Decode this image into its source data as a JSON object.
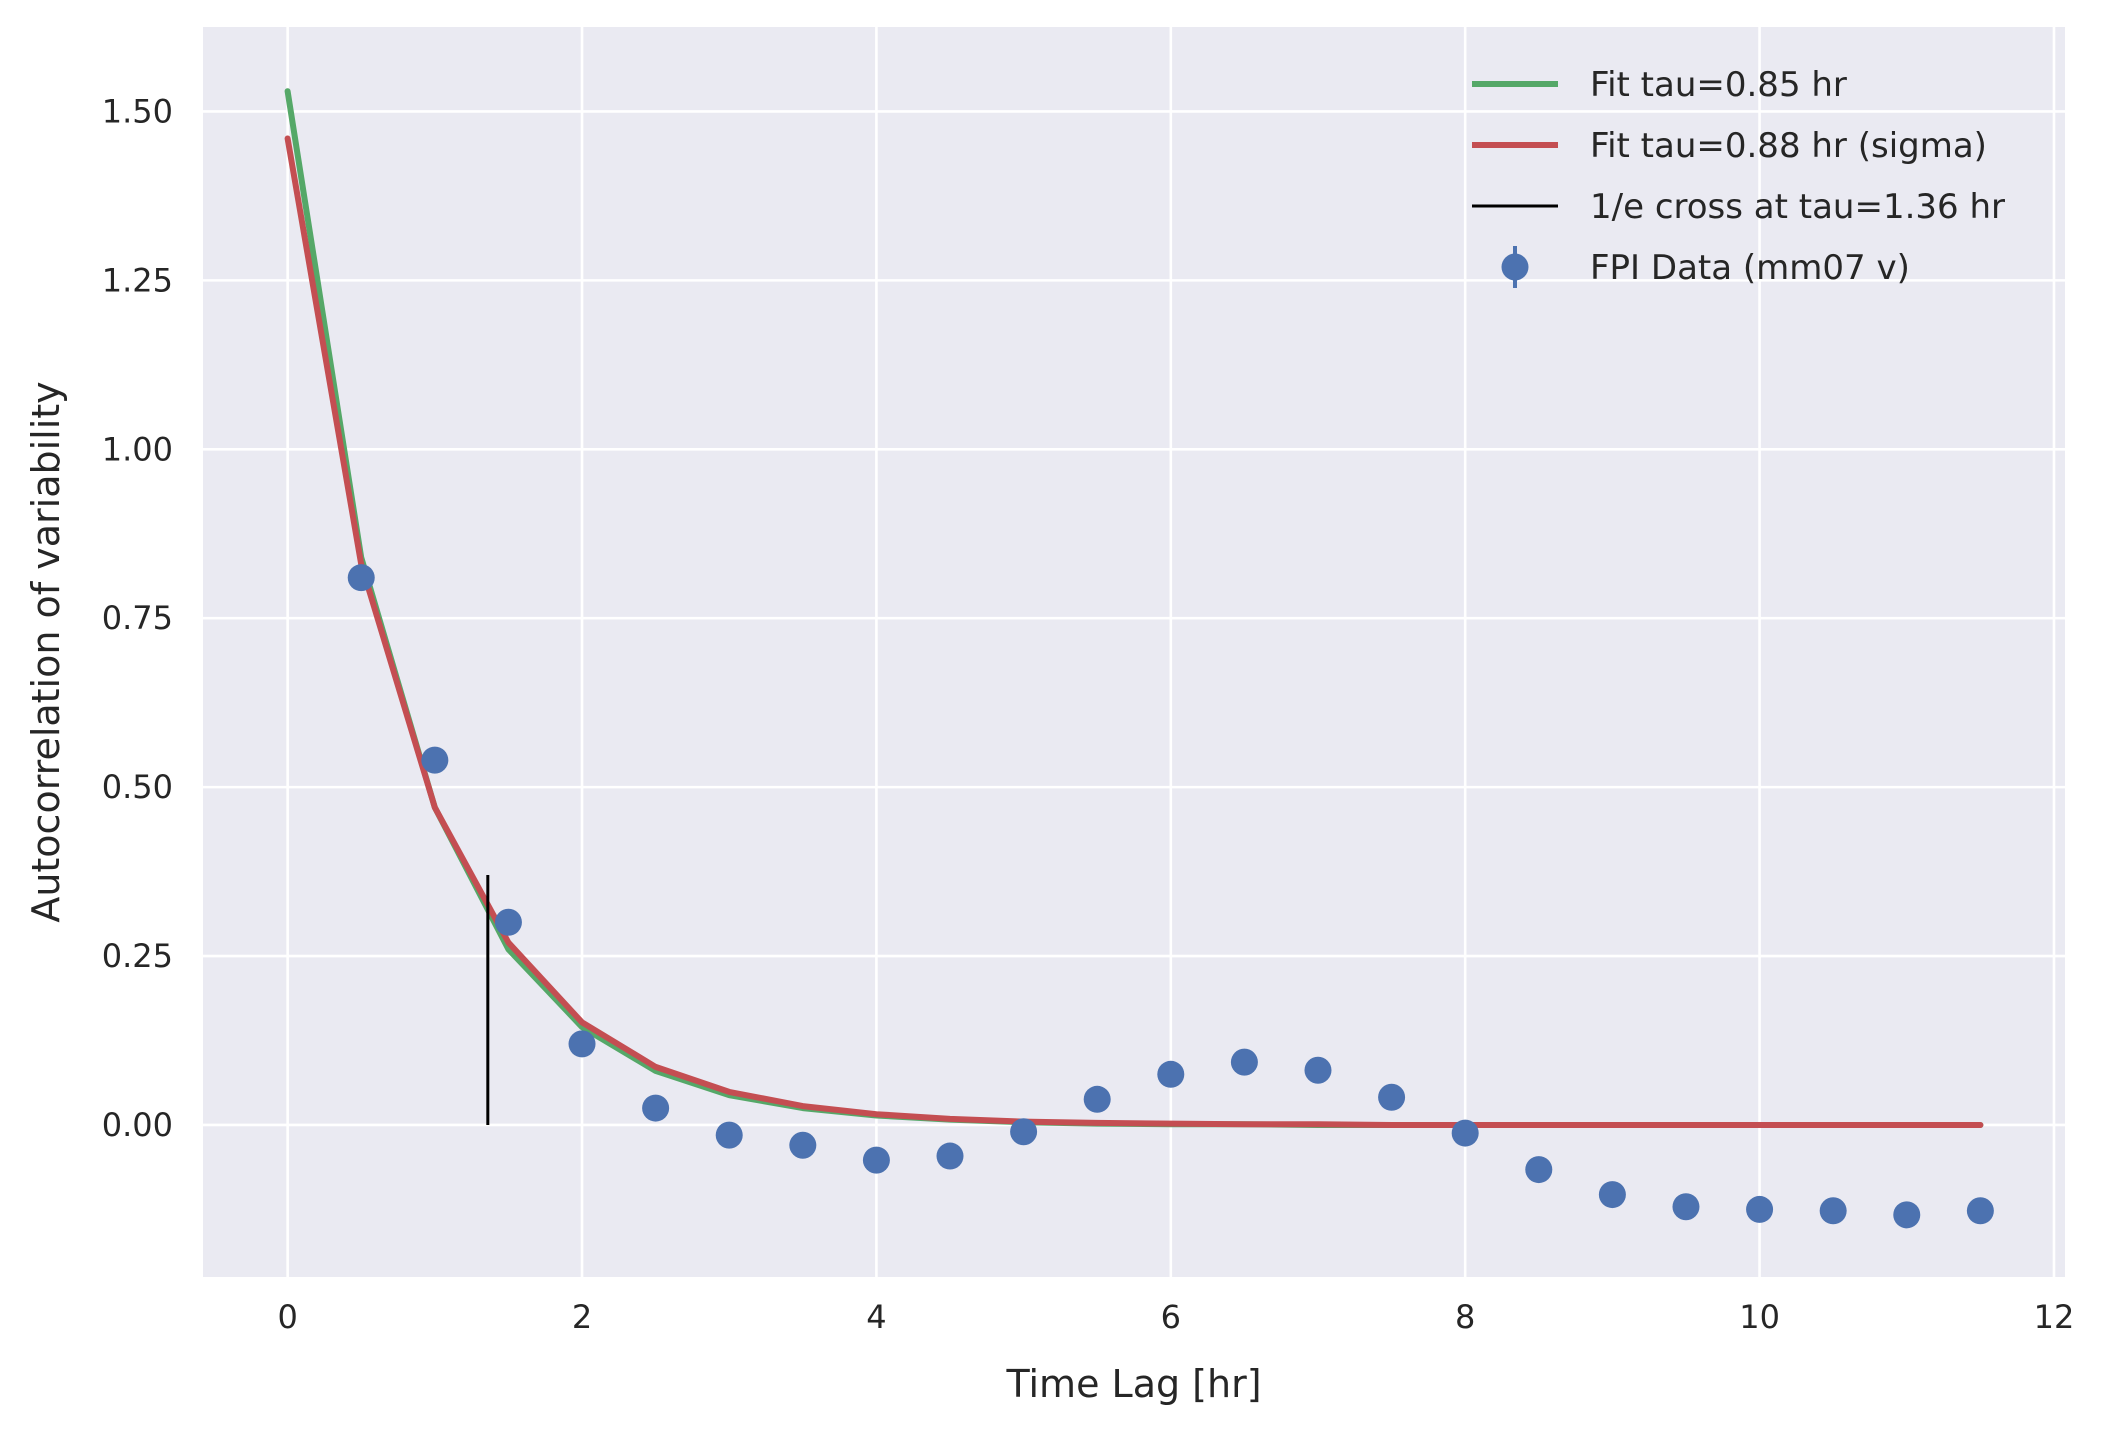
{
  "chart_data": {
    "type": "line",
    "title": "",
    "xlabel": "Time Lag [hr]",
    "ylabel": "Autocorrelation of variability",
    "xlim": [
      -0.575,
      12.075
    ],
    "ylim": [
      -0.225,
      1.625
    ],
    "xticks": [
      0,
      2,
      4,
      6,
      8,
      10,
      12
    ],
    "xtick_labels": [
      "0",
      "2",
      "4",
      "6",
      "8",
      "10",
      "12"
    ],
    "yticks": [
      0.0,
      0.25,
      0.5,
      0.75,
      1.0,
      1.25,
      1.5
    ],
    "ytick_labels": [
      "0.00",
      "0.25",
      "0.50",
      "0.75",
      "1.00",
      "1.25",
      "1.50"
    ],
    "grid": true,
    "legend_position": "top-right",
    "background": "#eaeaf2",
    "series": [
      {
        "name": "Fit tau=0.85 hr",
        "kind": "line",
        "color": "#55a868",
        "x": [
          0,
          0.5,
          1,
          1.5,
          2,
          2.5,
          3,
          3.5,
          4,
          4.5,
          5,
          5.5,
          6,
          6.5,
          7,
          7.5,
          8,
          8.5,
          9,
          9.5,
          10,
          10.5,
          11,
          11.5
        ],
        "y": [
          1.53,
          0.84,
          0.47,
          0.26,
          0.145,
          0.08,
          0.044,
          0.025,
          0.014,
          0.008,
          0.004,
          0.002,
          0.001,
          0.001,
          0.0,
          0.0,
          0.0,
          0.0,
          0.0,
          0.0,
          0.0,
          0.0,
          0.0,
          0.0
        ]
      },
      {
        "name": "Fit tau=0.88 hr (sigma)",
        "kind": "line",
        "color": "#c44e52",
        "x": [
          0,
          0.5,
          1,
          1.5,
          2,
          2.5,
          3,
          3.5,
          4,
          4.5,
          5,
          5.5,
          6,
          6.5,
          7,
          7.5,
          8,
          8.5,
          9,
          9.5,
          10,
          10.5,
          11,
          11.5
        ],
        "y": [
          1.46,
          0.83,
          0.47,
          0.27,
          0.152,
          0.086,
          0.049,
          0.028,
          0.016,
          0.009,
          0.005,
          0.003,
          0.002,
          0.001,
          0.001,
          0.0,
          0.0,
          0.0,
          0.0,
          0.0,
          0.0,
          0.0,
          0.0,
          0.0
        ]
      },
      {
        "name": "1/e cross at tau=1.36 hr",
        "kind": "vline",
        "color": "#000000",
        "x": 1.36,
        "y": [
          0.0,
          0.37
        ]
      },
      {
        "name": "FPI Data (mm07 v)",
        "kind": "errorbar-points",
        "color": "#4c72b0",
        "x": [
          0.5,
          1,
          1.5,
          2,
          2.5,
          3,
          3.5,
          4,
          4.5,
          5,
          5.5,
          6,
          6.5,
          7,
          7.5,
          8,
          8.5,
          9,
          9.5,
          10,
          10.5,
          11,
          11.5
        ],
        "y": [
          0.81,
          0.54,
          0.3,
          0.12,
          0.025,
          -0.015,
          -0.03,
          -0.052,
          -0.046,
          -0.01,
          0.038,
          0.075,
          0.093,
          0.081,
          0.041,
          -0.012,
          -0.066,
          -0.103,
          -0.121,
          -0.125,
          -0.127,
          -0.133,
          -0.127
        ]
      }
    ]
  }
}
